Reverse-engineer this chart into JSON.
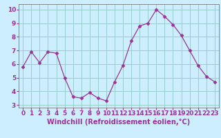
{
  "x": [
    0,
    1,
    2,
    3,
    4,
    5,
    6,
    7,
    8,
    9,
    10,
    11,
    12,
    13,
    14,
    15,
    16,
    17,
    18,
    19,
    20,
    21,
    22,
    23
  ],
  "y": [
    5.8,
    6.9,
    6.1,
    6.9,
    6.8,
    5.0,
    3.6,
    3.5,
    3.9,
    3.5,
    3.3,
    4.7,
    5.9,
    7.7,
    8.8,
    9.0,
    10.0,
    9.5,
    8.9,
    8.1,
    7.0,
    5.9,
    5.1,
    4.7
  ],
  "xlabel": "Windchill (Refroidissement éolien,°C)",
  "xlim": [
    -0.5,
    23.5
  ],
  "ylim": [
    2.8,
    10.4
  ],
  "yticks": [
    3,
    4,
    5,
    6,
    7,
    8,
    9,
    10
  ],
  "xticks": [
    0,
    1,
    2,
    3,
    4,
    5,
    6,
    7,
    8,
    9,
    10,
    11,
    12,
    13,
    14,
    15,
    16,
    17,
    18,
    19,
    20,
    21,
    22,
    23
  ],
  "line_color": "#993399",
  "marker": "D",
  "marker_size": 2.5,
  "bg_color": "#cceeff",
  "grid_color": "#99cccc",
  "xlabel_fontsize": 7,
  "tick_fontsize": 6.5,
  "spine_color": "#777777"
}
